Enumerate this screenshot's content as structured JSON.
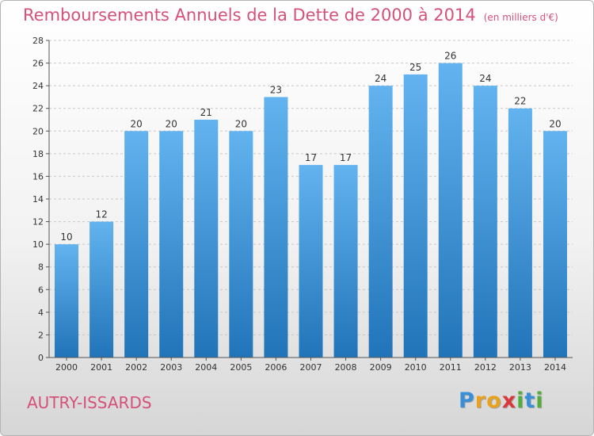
{
  "chart_data": {
    "type": "bar",
    "title": "Remboursements Annuels de la Dette de 2000 à 2014",
    "unit_label": "(en milliers d'€)",
    "categories": [
      "2000",
      "2001",
      "2002",
      "2003",
      "2004",
      "2005",
      "2006",
      "2007",
      "2008",
      "2009",
      "2010",
      "2011",
      "2012",
      "2013",
      "2014"
    ],
    "values": [
      10,
      12,
      20,
      20,
      21,
      20,
      23,
      17,
      17,
      24,
      25,
      26,
      24,
      22,
      20
    ],
    "ylim": [
      0,
      28
    ],
    "yticks": [
      0,
      2,
      4,
      6,
      8,
      10,
      12,
      14,
      16,
      18,
      20,
      22,
      24,
      26,
      28
    ],
    "grid": true,
    "bar_color_top": "#62b3ef",
    "bar_color_bottom": "#2174b8"
  },
  "footer": {
    "city": "AUTRY-ISSARDS",
    "logo_letters": [
      "P",
      "r",
      "o",
      "x",
      "i",
      "t",
      "i"
    ],
    "logo_colors": [
      "#3a8fd6",
      "#e8a21c",
      "#e8a21c",
      "#d9383a",
      "#52ad3a",
      "#3a8fd6",
      "#52ad3a"
    ]
  },
  "colors": {
    "title": "#d6517a",
    "grid": "#c8c8c8"
  }
}
